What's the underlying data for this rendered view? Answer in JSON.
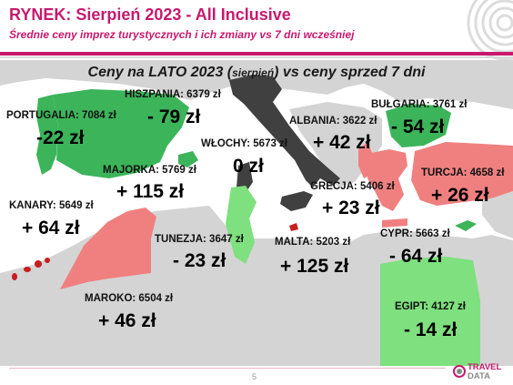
{
  "header": {
    "title": "RYNEK: Sierpień 2023 - All Inclusive",
    "subtitle": "Średnie ceny imprez turystycznych i ich zmiany vs 7 dni wcześniej"
  },
  "map": {
    "heading_part1": "Ceny na LATO 2023 (",
    "heading_small": "sierpień",
    "heading_part2": ") vs ceny sprzed 7 dni",
    "colors": {
      "decrease": "#3cb45a",
      "decrease_light": "#7ee07e",
      "increase": "#f08080",
      "no_change": "#404040",
      "sea": "#ffffff",
      "land": "#d4d4d4"
    },
    "destinations": [
      {
        "id": "hiszpania",
        "label": "HISZPANIA: 6379 zł",
        "change": "- 79 zł"
      },
      {
        "id": "portugalia",
        "label": "PORTUGALIA: 7084 zł",
        "change": "-22 zł"
      },
      {
        "id": "wlochy",
        "label": "WŁOCHY: 5673 zł",
        "change": "0 zł"
      },
      {
        "id": "albania",
        "label": "ALBANIA: 3622 zł",
        "change": "+ 42 zł"
      },
      {
        "id": "bulgaria",
        "label": "BUŁGARIA: 3761 zł",
        "change": "- 54 zł"
      },
      {
        "id": "majorka",
        "label": "MAJORKA: 5769 zł",
        "change": "+ 115 zł"
      },
      {
        "id": "turcja",
        "label": "TURCJA: 4658 zł",
        "change": "+  26 zł"
      },
      {
        "id": "grecja",
        "label": "GRECJA: 5406 zł",
        "change": "+ 23 zł"
      },
      {
        "id": "kanary",
        "label": "KANARY: 5649 zł",
        "change": "+ 64 zł"
      },
      {
        "id": "tunezja",
        "label": "TUNEZJA: 3647 zł",
        "change": "- 23 zł"
      },
      {
        "id": "malta",
        "label": "MALTA: 5203 zł",
        "change": "+ 125 zł"
      },
      {
        "id": "cypr",
        "label": "CYPR: 5663 zł",
        "change": "- 64 zł"
      },
      {
        "id": "maroko",
        "label": "MAROKO: 6504 zł",
        "change": "+ 46 zł"
      },
      {
        "id": "egipt",
        "label": "EGIPT:  4127 zł",
        "change": "- 14 zł"
      }
    ]
  },
  "footer": {
    "page_number": "5",
    "logo_line1": "TRAVEL",
    "logo_line2": "DATA"
  }
}
